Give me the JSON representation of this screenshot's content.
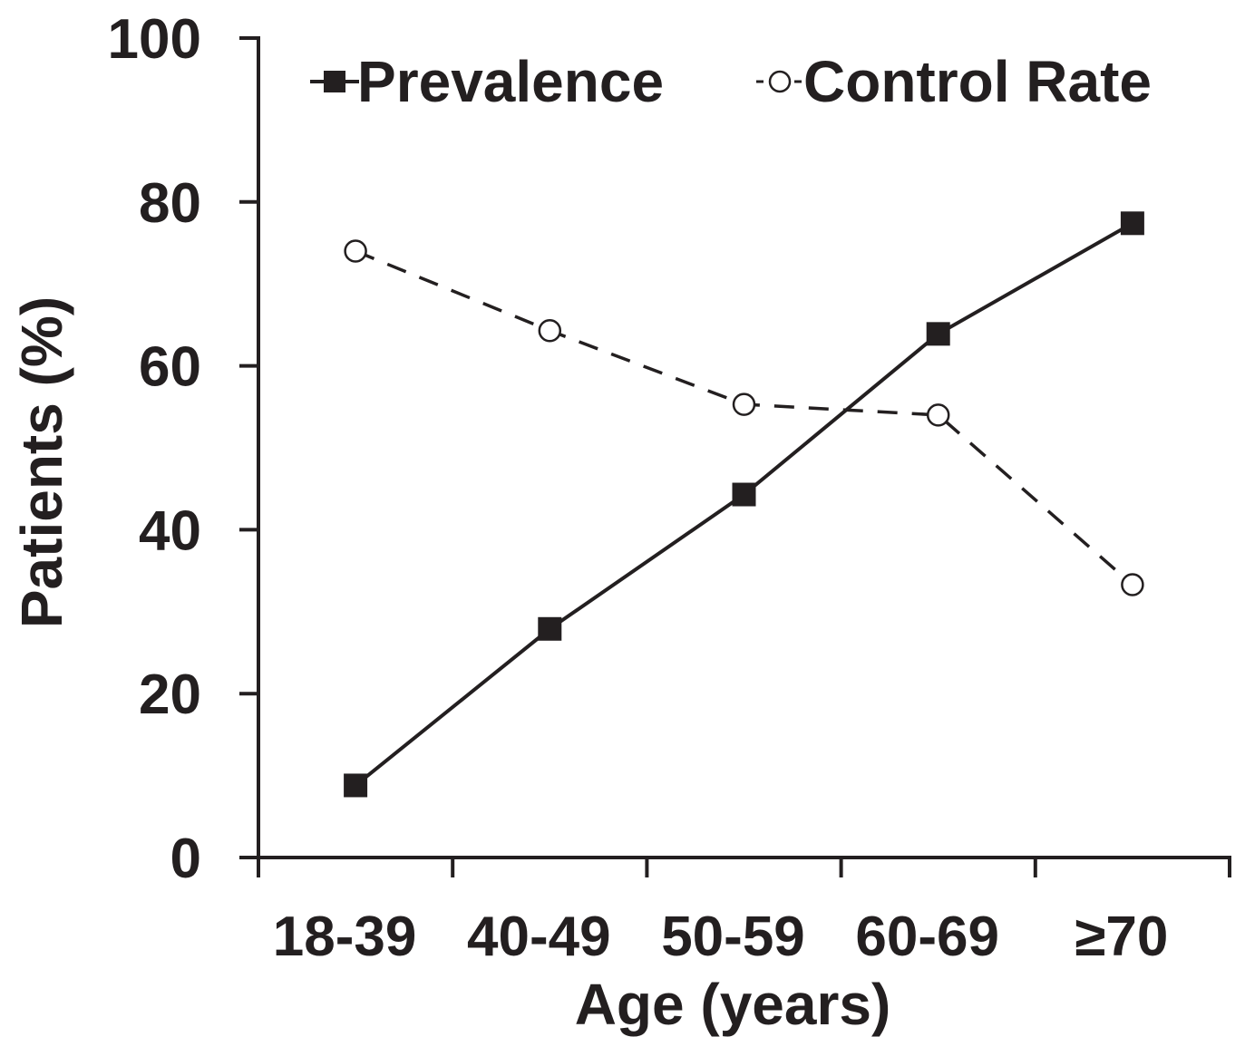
{
  "chart_data": {
    "type": "line",
    "title": "",
    "xlabel": "Age (years)",
    "ylabel": "Patients (%)",
    "categories": [
      "18-39",
      "40-49",
      "50-59",
      "60-69",
      "≥70"
    ],
    "ylim": [
      0,
      100
    ],
    "yticks": [
      "0",
      "20",
      "40",
      "60",
      "80",
      "100"
    ],
    "grid": false,
    "legend_position": "top",
    "series": [
      {
        "name": "Prevalence",
        "values": [
          8.8,
          27.9,
          44.3,
          63.9,
          77.4
        ],
        "line_style": "solid",
        "marker": "filled-square",
        "color": "#231f20"
      },
      {
        "name": "Control Rate",
        "values": [
          74.0,
          64.3,
          55.3,
          54.0,
          33.3
        ],
        "line_style": "dashed",
        "marker": "open-circle",
        "color": "#231f20"
      }
    ]
  }
}
